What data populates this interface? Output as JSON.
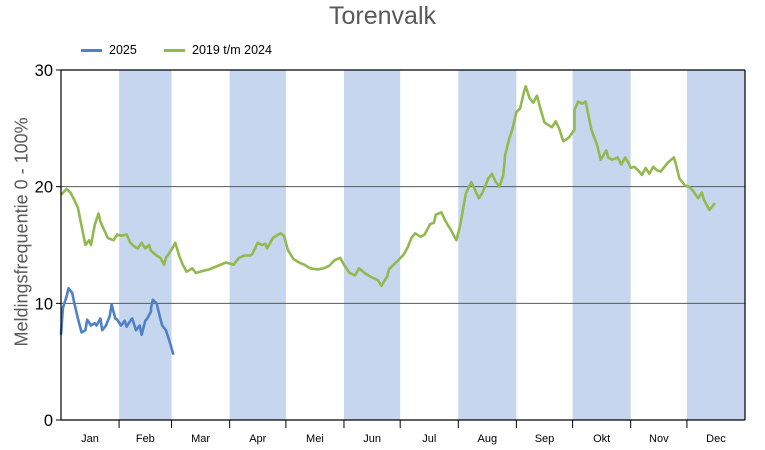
{
  "chart": {
    "title": "Torenvalk",
    "y_axis_label": "Meldingsfrequentie 0 - 100%",
    "legend": [
      {
        "label": "2025",
        "color": "#4F81C7"
      },
      {
        "label": "2019 t/m 2024",
        "color": "#92B94E"
      }
    ],
    "band_color": "#C6D6EE"
  },
  "chart_data": {
    "type": "line",
    "title": "Torenvalk",
    "xlabel": "",
    "ylabel": "Meldingsfrequentie 0 - 100%",
    "ylim": [
      0,
      30
    ],
    "yticks": [
      0,
      10,
      20,
      30
    ],
    "grid": "horizontal at 10 and 20",
    "legend_position": "top-left",
    "categories": [
      "Jan",
      "Feb",
      "Mar",
      "Apr",
      "Mei",
      "Jun",
      "Jul",
      "Aug",
      "Sep",
      "Okt",
      "Nov",
      "Dec"
    ],
    "shaded_months": [
      "Feb",
      "Apr",
      "Jun",
      "Aug",
      "Okt",
      "Dec"
    ],
    "x_unit": "day of year (0-365)",
    "series": [
      {
        "name": "2025",
        "color": "#4F81C7",
        "x": [
          0,
          1,
          3,
          4,
          6,
          7,
          9,
          11,
          13,
          14,
          16,
          18,
          19,
          21,
          22,
          24,
          26,
          27,
          29,
          30,
          32,
          34,
          35,
          37,
          38,
          40,
          42,
          43,
          45,
          46,
          48,
          48,
          49,
          51,
          53,
          54,
          56,
          58,
          60
        ],
        "values": [
          7.3,
          9.6,
          10.6,
          11.3,
          10.9,
          10.1,
          8.7,
          7.5,
          7.7,
          8.6,
          8.1,
          8.3,
          8.1,
          8.7,
          7.7,
          8.1,
          8.9,
          9.9,
          8.7,
          8.6,
          8.1,
          8.5,
          8.0,
          8.5,
          8.7,
          7.7,
          8.1,
          7.3,
          8.5,
          8.7,
          9.3,
          9.6,
          10.3,
          10.0,
          8.7,
          8.1,
          7.7,
          6.7,
          5.6
        ]
      },
      {
        "name": "2019 t/m 2024",
        "color": "#92B94E",
        "x": [
          0,
          3,
          5,
          7,
          9,
          11,
          13,
          15,
          16,
          18,
          20,
          21,
          23,
          25,
          28,
          30,
          32,
          35,
          37,
          39,
          41,
          43,
          45,
          47,
          48,
          51,
          53,
          55,
          56,
          59,
          61,
          63,
          65,
          67,
          70,
          72,
          76,
          79,
          88,
          92,
          95,
          98,
          101,
          102,
          105,
          107,
          109,
          110,
          113,
          117,
          119,
          121,
          124,
          127,
          130,
          133,
          137,
          140,
          143,
          146,
          149,
          151,
          154,
          157,
          159,
          162,
          165,
          169,
          171,
          174,
          175,
          178,
          180,
          183,
          185,
          187,
          189,
          192,
          194,
          197,
          199,
          200,
          203,
          205,
          208,
          211,
          213,
          216,
          219,
          221,
          223,
          225,
          228,
          230,
          232,
          234,
          236,
          237,
          239,
          241,
          243,
          245,
          247,
          248,
          250,
          252,
          254,
          256,
          258,
          262,
          264,
          266,
          268,
          271,
          274,
          274,
          276,
          278,
          280,
          283,
          286,
          288,
          291,
          292,
          294,
          297,
          299,
          301,
          303,
          304,
          306,
          308,
          310,
          312,
          314,
          316,
          318,
          320,
          324,
          327,
          328,
          330,
          333,
          335,
          337,
          340,
          342,
          343,
          346,
          349
        ],
        "values": [
          19.3,
          19.8,
          19.5,
          18.9,
          18.2,
          16.6,
          15.0,
          15.4,
          15.0,
          16.7,
          17.7,
          17.0,
          16.3,
          15.6,
          15.4,
          15.9,
          15.8,
          15.9,
          15.2,
          14.9,
          14.7,
          15.2,
          14.7,
          15.0,
          14.5,
          14.1,
          13.9,
          13.3,
          13.9,
          14.6,
          15.2,
          14.1,
          13.3,
          12.7,
          13.0,
          12.6,
          12.8,
          12.9,
          13.5,
          13.3,
          13.9,
          14.1,
          14.1,
          14.2,
          15.2,
          15.0,
          15.1,
          14.7,
          15.6,
          16.0,
          15.8,
          14.6,
          13.8,
          13.5,
          13.3,
          13.0,
          12.9,
          13.0,
          13.2,
          13.7,
          13.9,
          13.3,
          12.6,
          12.4,
          13.0,
          12.6,
          12.3,
          12.0,
          11.5,
          12.3,
          12.9,
          13.4,
          13.7,
          14.2,
          14.8,
          15.6,
          16.0,
          15.7,
          15.9,
          16.8,
          16.9,
          17.6,
          17.8,
          17.1,
          16.3,
          15.4,
          16.7,
          19.4,
          20.4,
          19.7,
          19.0,
          19.5,
          20.7,
          21.1,
          20.4,
          20.0,
          21.0,
          22.7,
          24.0,
          25.0,
          26.4,
          26.7,
          28.1,
          28.6,
          27.6,
          27.2,
          27.8,
          26.6,
          25.5,
          25.1,
          25.6,
          24.9,
          23.9,
          24.2,
          24.9,
          26.6,
          27.3,
          27.1,
          27.3,
          24.9,
          23.6,
          22.3,
          23.1,
          22.5,
          22.3,
          22.5,
          21.9,
          22.5,
          22.0,
          21.6,
          21.7,
          21.4,
          21.0,
          21.6,
          21.1,
          21.7,
          21.4,
          21.3,
          22.1,
          22.5,
          22.0,
          20.7,
          20.1,
          20.0,
          19.7,
          19.0,
          19.5,
          18.9,
          18.0,
          18.6
        ]
      }
    ]
  }
}
